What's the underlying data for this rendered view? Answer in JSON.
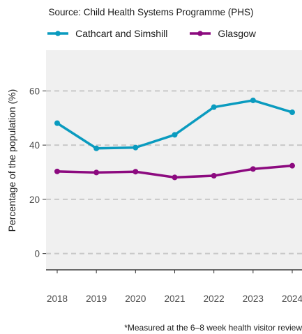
{
  "subtitle": "Source: Child Health Systems Programme (PHS)",
  "caption": "*Measured at the 6–8 week health visitor review",
  "colors": {
    "panel": "#f0f0f0",
    "grid": "#c8c8c8"
  },
  "chart_data": {
    "type": "line",
    "x": [
      "2018",
      "2019",
      "2020",
      "2021",
      "2022",
      "2023",
      "2024"
    ],
    "series": [
      {
        "name": "Cathcart and Simshill",
        "color": "#0a9bbf",
        "values": [
          48.1,
          38.8,
          39.1,
          43.8,
          54.0,
          56.5,
          52.1
        ]
      },
      {
        "name": "Glasgow",
        "color": "#8c0a7f",
        "values": [
          30.3,
          29.9,
          30.2,
          28.1,
          28.7,
          31.2,
          32.4
        ]
      }
    ],
    "xlabel": "",
    "ylabel": "Percentage of the population (%)",
    "ylim": [
      -6,
      75
    ],
    "yticks": [
      0,
      20,
      40,
      60
    ],
    "grid": true,
    "legend_position": "top"
  }
}
